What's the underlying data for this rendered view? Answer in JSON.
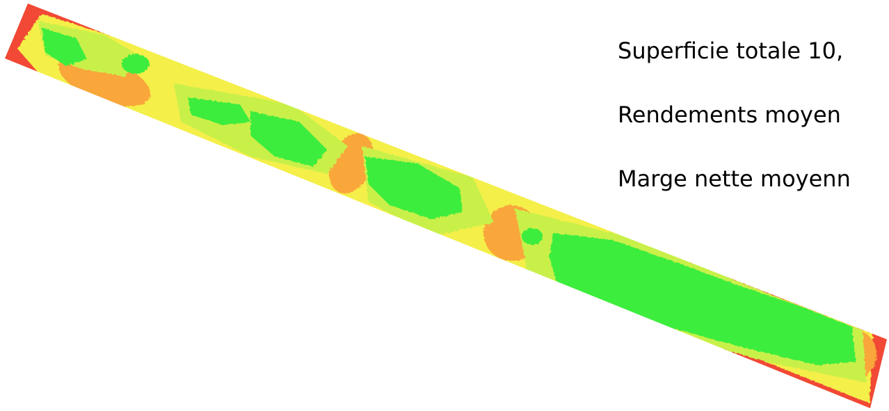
{
  "info": {
    "lines": [
      "Superficie totale 10,",
      "Rendements moyen",
      "Marge nette moyenn"
    ]
  },
  "colors": {
    "low": "#f14a35",
    "mid_low": "#f9a63b",
    "mid": "#f4ef4a",
    "mid_high": "#c9f04a",
    "high": "#3ced3c"
  }
}
